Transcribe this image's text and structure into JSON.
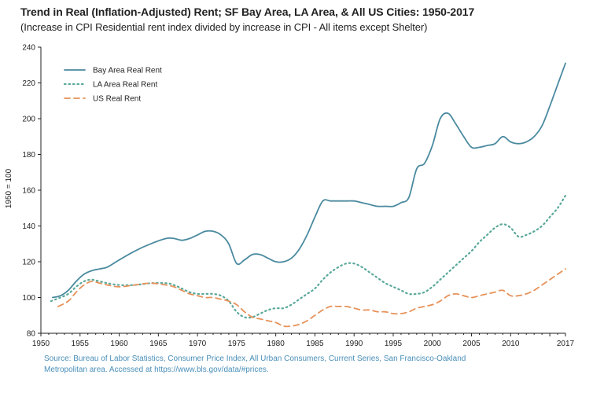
{
  "chart_data": {
    "type": "line",
    "title": "Trend in Real (Inflation-Adjusted) Rent; SF Bay Area, LA Area, & All US Cities: 1950-2017",
    "subtitle": "(Increase in CPI Residential rent index divided by increase in CPI - All items except Shelter)",
    "xlabel": "",
    "ylabel": "1950 = 100",
    "xlim": [
      1950,
      2017
    ],
    "ylim": [
      80,
      240
    ],
    "x_ticks": [
      1950,
      1955,
      1960,
      1965,
      1970,
      1975,
      1980,
      1985,
      1990,
      1995,
      2000,
      2005,
      2010,
      2015,
      2017
    ],
    "x_tick_labels": [
      "1950",
      "1955",
      "1960",
      "1965",
      "1970",
      "1975",
      "1980",
      "1985",
      "1990",
      "1995",
      "2000",
      "2005",
      "2010",
      "",
      "2017"
    ],
    "y_ticks": [
      80,
      100,
      120,
      140,
      160,
      180,
      200,
      220,
      240
    ],
    "legend_position": "top-left",
    "grid": false,
    "series": [
      {
        "name": "Bay Area Real Rent",
        "color": "#4a8a9f",
        "style": "solid",
        "x": [
          1951.5,
          1952.5,
          1953.5,
          1954.5,
          1955.5,
          1956.5,
          1957.5,
          1958.5,
          1960,
          1962,
          1964,
          1966,
          1967,
          1968,
          1969,
          1970,
          1971,
          1972,
          1973,
          1974,
          1975,
          1976,
          1977,
          1978,
          1979,
          1980,
          1981,
          1982,
          1983,
          1984,
          1985,
          1986,
          1987,
          1988,
          1989,
          1990,
          1991,
          1992,
          1993,
          1994,
          1995,
          1996,
          1997,
          1998,
          1999,
          2000,
          2001,
          2002,
          2003,
          2004,
          2005,
          2006,
          2007,
          2008,
          2009,
          2010,
          2011,
          2012,
          2013,
          2014,
          2015,
          2016,
          2017
        ],
        "y": [
          100,
          101,
          104,
          109,
          113,
          115,
          116,
          117,
          121,
          126,
          130,
          133,
          133,
          132,
          133,
          135,
          137,
          137,
          135,
          130,
          119,
          121,
          124,
          124,
          122,
          120,
          120,
          122,
          127,
          135,
          145,
          154,
          154,
          154,
          154,
          154,
          153,
          152,
          151,
          151,
          151,
          153,
          156,
          172,
          175,
          185,
          200,
          203,
          197,
          190,
          184,
          184,
          185,
          186,
          190,
          187,
          186,
          187,
          190,
          196,
          207,
          219,
          231
        ]
      },
      {
        "name": "LA Area Real Rent",
        "color": "#5aa89a",
        "style": "dotted",
        "x": [
          1951.3,
          1952.5,
          1953.5,
          1954.5,
          1955.5,
          1956.5,
          1957.5,
          1958.5,
          1960,
          1962,
          1964,
          1966,
          1967,
          1968,
          1969,
          1970,
          1971,
          1972,
          1973,
          1974,
          1975,
          1976,
          1977,
          1978,
          1979,
          1980,
          1981,
          1982,
          1983,
          1984,
          1985,
          1986,
          1987,
          1988,
          1989,
          1990,
          1991,
          1992,
          1993,
          1994,
          1995,
          1996,
          1997,
          1998,
          1999,
          2000,
          2001,
          2002,
          2003,
          2004,
          2005,
          2006,
          2007,
          2008,
          2009,
          2010,
          2011,
          2012,
          2013,
          2014,
          2015,
          2016,
          2017
        ],
        "y": [
          98,
          100,
          102,
          106,
          109,
          110,
          109,
          108,
          107,
          107,
          108,
          108,
          107,
          105,
          103,
          102,
          102,
          102,
          101,
          98,
          92,
          89,
          89,
          91,
          93,
          94,
          94,
          96,
          99,
          102,
          105,
          110,
          114,
          117,
          119,
          119,
          117,
          114,
          111,
          108,
          106,
          104,
          102,
          102,
          103,
          106,
          110,
          114,
          118,
          122,
          126,
          131,
          135,
          139,
          141,
          139,
          134,
          135,
          137,
          140,
          145,
          150,
          157
        ]
      },
      {
        "name": "US Real Rent",
        "color": "#e6925a",
        "style": "dashed",
        "x": [
          1952.2,
          1953.5,
          1954.5,
          1955.5,
          1956.5,
          1957.5,
          1958.5,
          1960,
          1962,
          1964,
          1966,
          1967,
          1968,
          1969,
          1970,
          1971,
          1972,
          1973,
          1974,
          1975,
          1976,
          1977,
          1978,
          1979,
          1980,
          1981,
          1982,
          1983,
          1984,
          1985,
          1986,
          1987,
          1988,
          1989,
          1990,
          1991,
          1992,
          1993,
          1994,
          1995,
          1996,
          1997,
          1998,
          1999,
          2000,
          2001,
          2002,
          2003,
          2004,
          2005,
          2006,
          2007,
          2008,
          2009,
          2010,
          2011,
          2012,
          2013,
          2014,
          2015,
          2016,
          2017
        ],
        "y": [
          95,
          98,
          103,
          107,
          109,
          108,
          107,
          106,
          107,
          108,
          107,
          106,
          104,
          102,
          101,
          100,
          100,
          99,
          98,
          96,
          92,
          89,
          88,
          87,
          86,
          84,
          84,
          85,
          87,
          90,
          93,
          95,
          95,
          95,
          94,
          93,
          93,
          92,
          92,
          91,
          91,
          92,
          94,
          95,
          96,
          98,
          101,
          102,
          101,
          100,
          101,
          102,
          103,
          104,
          101,
          101,
          102,
          104,
          107,
          110,
          113,
          116
        ]
      }
    ]
  },
  "source": {
    "line1": "Source: Bureau of Labor Statistics, Consumer Price Index, All Urban Consumers, Current Series, San Francisco-Oakland",
    "line2": "Metropolitan area.  Accessed at https://www.bls.gov/data/#prices."
  }
}
